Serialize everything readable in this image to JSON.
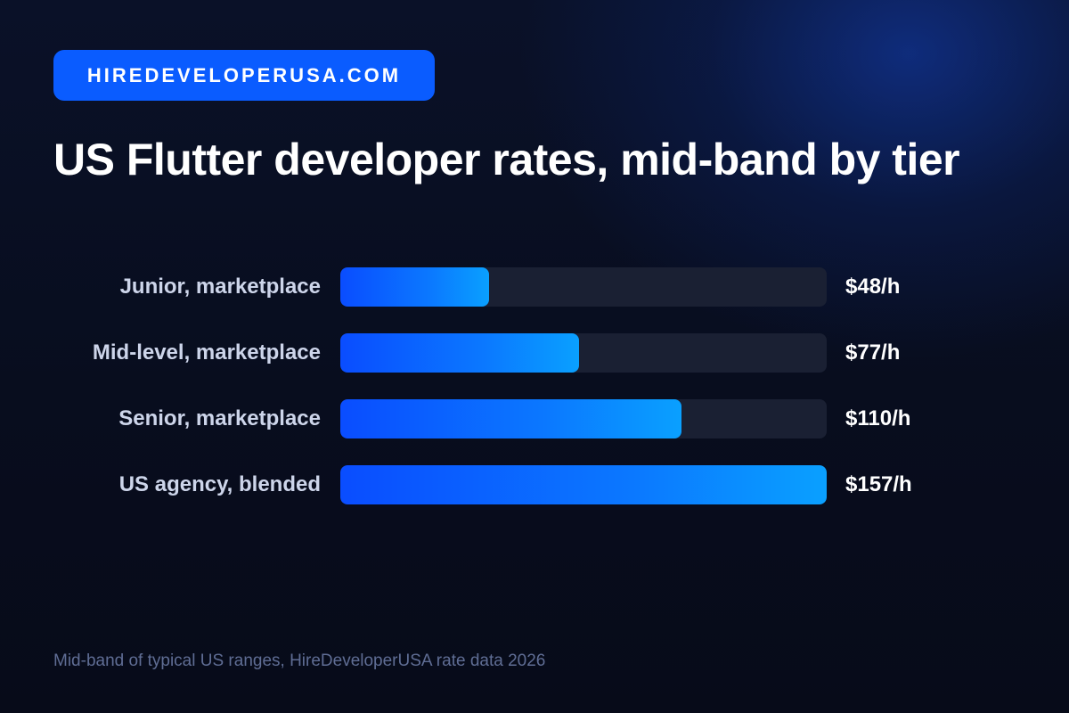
{
  "badge": {
    "label": "HIREDEVELOPERUSA.COM"
  },
  "colors": {
    "accent": "#0a5cff",
    "bar_start": "#0a4dff",
    "bar_end": "#0aa0ff",
    "track": "#1a2033",
    "background": "#080d1f"
  },
  "chart_data": {
    "type": "bar",
    "orientation": "horizontal",
    "title": "US Flutter developer rates, mid-band by tier",
    "categories": [
      "Junior, marketplace",
      "Mid-level, marketplace",
      "Senior, marketplace",
      "US agency, blended"
    ],
    "values": [
      48,
      77,
      110,
      157
    ],
    "value_labels": [
      "$48/h",
      "$77/h",
      "$110/h",
      "$157/h"
    ],
    "unit": "$/h",
    "xlim": [
      0,
      157
    ],
    "grid": false,
    "legend": "none"
  },
  "footnote": "Mid-band of typical US ranges, HireDeveloperUSA rate data 2026"
}
